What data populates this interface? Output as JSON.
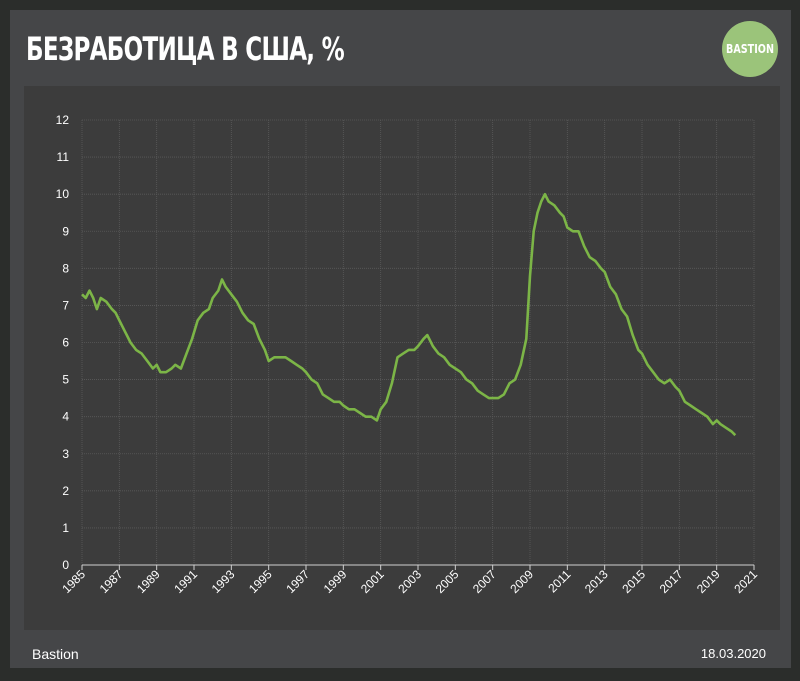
{
  "header": {
    "title": "БЕЗРАБОТИЦА В США, %",
    "logo_text": "BASTION",
    "logo_color": "#9bc47a"
  },
  "footer": {
    "source": "Bastion",
    "date": "18.03.2020"
  },
  "colors": {
    "line": "#7cb547",
    "grid": "#5a5a5a",
    "text": "#ffffff"
  },
  "chart_data": {
    "type": "line",
    "title": "БЕЗРАБОТИЦА В США, %",
    "xlabel": "",
    "ylabel": "",
    "xlim": [
      1985,
      2021
    ],
    "ylim": [
      0,
      12
    ],
    "grid": true,
    "x_ticks": [
      "1985",
      "1987",
      "1989",
      "1991",
      "1993",
      "1995",
      "1997",
      "1999",
      "2001",
      "2003",
      "2005",
      "2007",
      "2009",
      "2011",
      "2013",
      "2015",
      "2017",
      "2019",
      "2021"
    ],
    "y_ticks": [
      "0",
      "1",
      "2",
      "3",
      "4",
      "5",
      "6",
      "7",
      "8",
      "9",
      "10",
      "11",
      "12"
    ],
    "series": [
      {
        "name": "",
        "x": [
          1985.0,
          1985.2,
          1985.4,
          1985.6,
          1985.8,
          1986.0,
          1986.3,
          1986.6,
          1986.8,
          1987.0,
          1987.3,
          1987.6,
          1987.9,
          1988.2,
          1988.5,
          1988.8,
          1989.0,
          1989.2,
          1989.5,
          1989.8,
          1990.0,
          1990.3,
          1990.6,
          1990.9,
          1991.2,
          1991.5,
          1991.8,
          1992.0,
          1992.3,
          1992.5,
          1992.7,
          1993.0,
          1993.3,
          1993.6,
          1993.9,
          1994.2,
          1994.5,
          1994.8,
          1995.0,
          1995.3,
          1995.6,
          1995.9,
          1996.2,
          1996.5,
          1996.8,
          1997.0,
          1997.3,
          1997.6,
          1997.9,
          1998.2,
          1998.5,
          1998.8,
          1999.0,
          1999.3,
          1999.6,
          1999.9,
          2000.2,
          2000.5,
          2000.8,
          2001.0,
          2001.3,
          2001.6,
          2001.9,
          2002.2,
          2002.5,
          2002.8,
          2003.0,
          2003.3,
          2003.5,
          2003.8,
          2004.1,
          2004.4,
          2004.7,
          2005.0,
          2005.3,
          2005.6,
          2005.9,
          2006.2,
          2006.5,
          2006.8,
          2007.0,
          2007.3,
          2007.6,
          2007.9,
          2008.2,
          2008.5,
          2008.8,
          2009.0,
          2009.2,
          2009.4,
          2009.6,
          2009.8,
          2010.0,
          2010.3,
          2010.6,
          2010.8,
          2011.0,
          2011.3,
          2011.6,
          2011.9,
          2012.2,
          2012.5,
          2012.8,
          2013.0,
          2013.3,
          2013.6,
          2013.9,
          2014.2,
          2014.5,
          2014.8,
          2015.0,
          2015.3,
          2015.6,
          2015.9,
          2016.2,
          2016.5,
          2016.8,
          2017.0,
          2017.3,
          2017.6,
          2017.9,
          2018.2,
          2018.5,
          2018.8,
          2019.0,
          2019.2,
          2019.5,
          2019.8,
          2020.0
        ],
        "values": [
          7.3,
          7.2,
          7.4,
          7.2,
          6.9,
          7.2,
          7.1,
          6.9,
          6.8,
          6.6,
          6.3,
          6.0,
          5.8,
          5.7,
          5.5,
          5.3,
          5.4,
          5.2,
          5.2,
          5.3,
          5.4,
          5.3,
          5.7,
          6.1,
          6.6,
          6.8,
          6.9,
          7.2,
          7.4,
          7.7,
          7.5,
          7.3,
          7.1,
          6.8,
          6.6,
          6.5,
          6.1,
          5.8,
          5.5,
          5.6,
          5.6,
          5.6,
          5.5,
          5.4,
          5.3,
          5.2,
          5.0,
          4.9,
          4.6,
          4.5,
          4.4,
          4.4,
          4.3,
          4.2,
          4.2,
          4.1,
          4.0,
          4.0,
          3.9,
          4.2,
          4.4,
          4.9,
          5.6,
          5.7,
          5.8,
          5.8,
          5.9,
          6.1,
          6.2,
          5.9,
          5.7,
          5.6,
          5.4,
          5.3,
          5.2,
          5.0,
          4.9,
          4.7,
          4.6,
          4.5,
          4.5,
          4.5,
          4.6,
          4.9,
          5.0,
          5.4,
          6.1,
          7.8,
          9.0,
          9.5,
          9.8,
          10.0,
          9.8,
          9.7,
          9.5,
          9.4,
          9.1,
          9.0,
          9.0,
          8.6,
          8.3,
          8.2,
          8.0,
          7.9,
          7.5,
          7.3,
          6.9,
          6.7,
          6.2,
          5.8,
          5.7,
          5.4,
          5.2,
          5.0,
          4.9,
          5.0,
          4.8,
          4.7,
          4.4,
          4.3,
          4.2,
          4.1,
          4.0,
          3.8,
          3.9,
          3.8,
          3.7,
          3.6,
          3.5
        ]
      }
    ]
  }
}
